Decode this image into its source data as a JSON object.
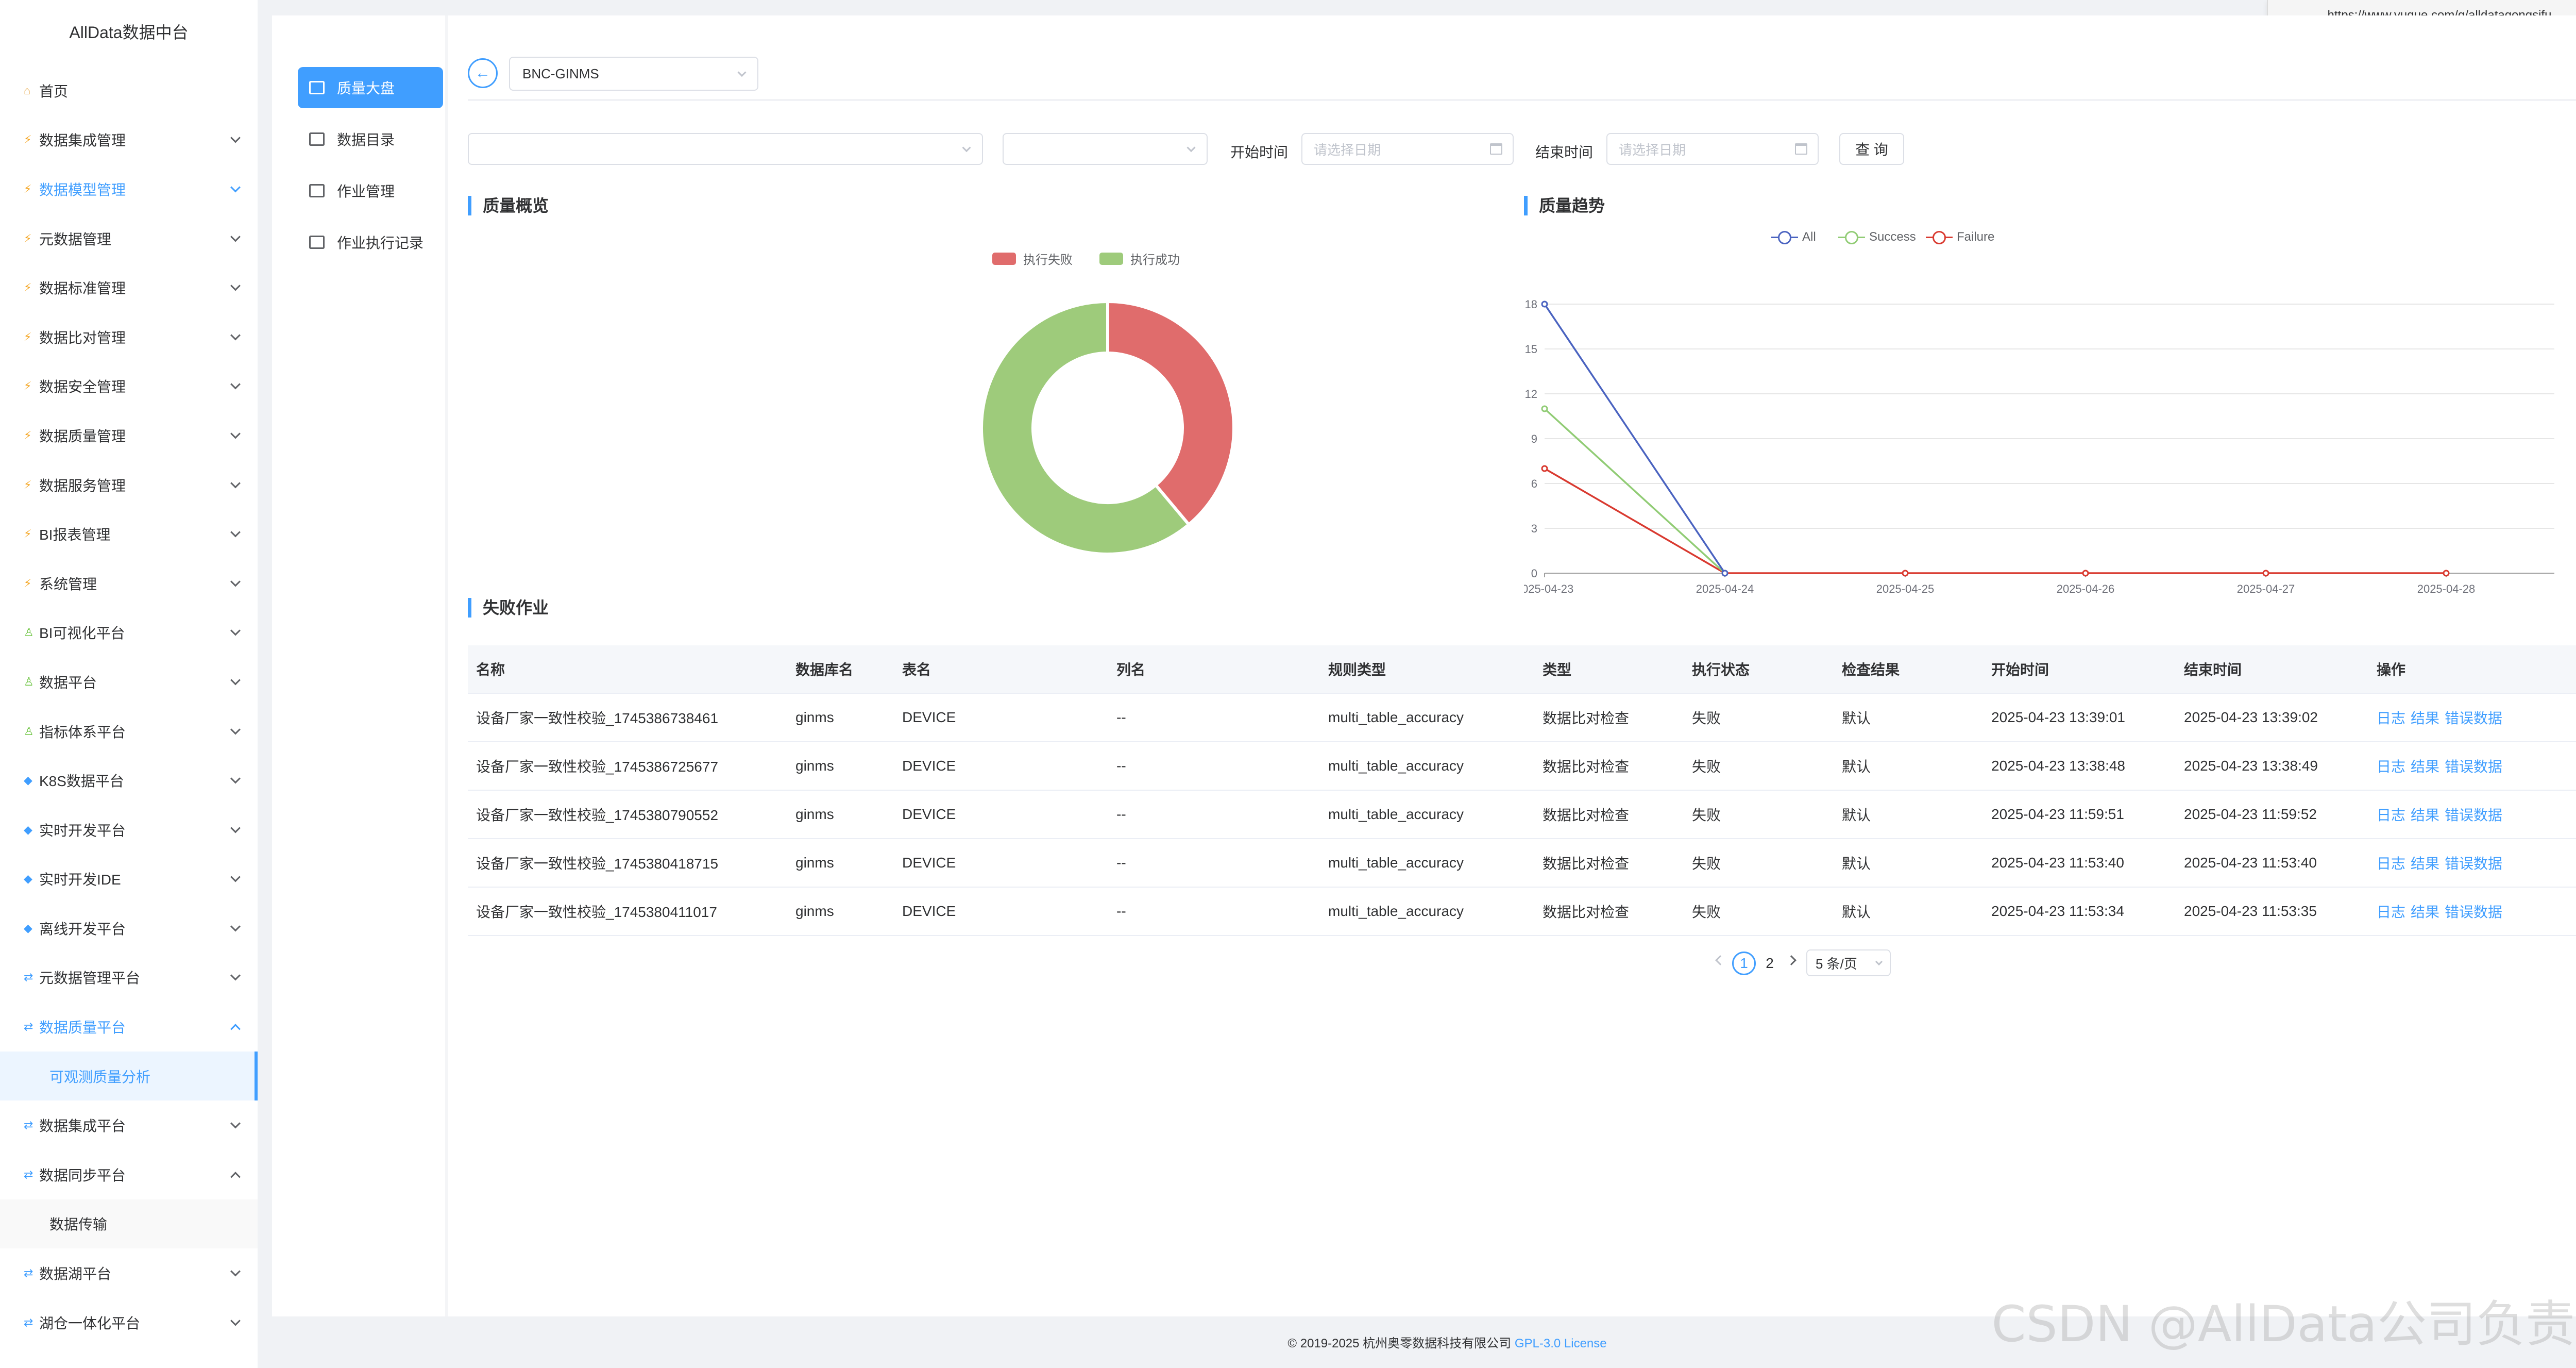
{
  "app": {
    "title": "AllData数据中台"
  },
  "browser": {
    "url": "https://www.yuque.com/g/alldatagongsifu..."
  },
  "sidebar": {
    "items": [
      {
        "label": "首页",
        "icon": "house-icon"
      },
      {
        "label": "数据集成管理",
        "icon": "bolt-icon"
      },
      {
        "label": "数据模型管理",
        "icon": "bolt-icon"
      },
      {
        "label": "元数据管理",
        "icon": "bolt-icon"
      },
      {
        "label": "数据标准管理",
        "icon": "bolt-icon"
      },
      {
        "label": "数据比对管理",
        "icon": "bolt-icon"
      },
      {
        "label": "数据安全管理",
        "icon": "bolt-icon"
      },
      {
        "label": "数据质量管理",
        "icon": "bolt-icon"
      },
      {
        "label": "数据服务管理",
        "icon": "bolt-icon"
      },
      {
        "label": "BI报表管理",
        "icon": "bolt-icon"
      },
      {
        "label": "系统管理",
        "icon": "bolt-icon"
      },
      {
        "label": "BI可视化平台",
        "icon": "person-icon"
      },
      {
        "label": "数据平台",
        "icon": "person-icon"
      },
      {
        "label": "指标体系平台",
        "icon": "person-icon"
      },
      {
        "label": "K8S数据平台",
        "icon": "gem-icon"
      },
      {
        "label": "实时开发平台",
        "icon": "gem-icon"
      },
      {
        "label": "实时开发IDE",
        "icon": "gem-icon"
      },
      {
        "label": "离线开发平台",
        "icon": "gem-icon"
      },
      {
        "label": "元数据管理平台",
        "icon": "swap-icon"
      },
      {
        "label": "数据质量平台",
        "icon": "swap-icon"
      },
      {
        "label": "可观测质量分析",
        "icon": ""
      },
      {
        "label": "数据集成平台",
        "icon": "swap-icon"
      },
      {
        "label": "数据同步平台",
        "icon": "swap-icon"
      },
      {
        "label": "数据传输",
        "icon": ""
      },
      {
        "label": "数据湖平台",
        "icon": "swap-icon"
      },
      {
        "label": "湖仓一体化平台",
        "icon": "swap-icon"
      }
    ]
  },
  "subnav": {
    "items": [
      {
        "label": "质量大盘",
        "icon": "bar-chart-icon"
      },
      {
        "label": "数据目录",
        "icon": "catalog-icon"
      },
      {
        "label": "作业管理",
        "icon": "list-icon"
      },
      {
        "label": "作业执行记录",
        "icon": "record-icon"
      }
    ]
  },
  "header": {
    "datasource_value": "BNC-GINMS"
  },
  "filters": {
    "start_label": "开始时间",
    "end_label": "结束时间",
    "date_placeholder": "请选择日期",
    "query_label": "查 询"
  },
  "overview": {
    "title": "质量概览",
    "chart_data": {
      "type": "pie",
      "donut": true,
      "legend": [
        "执行失败",
        "执行成功"
      ],
      "legend_position": "top",
      "values": [
        7,
        11
      ],
      "colors": [
        "#e06c6c",
        "#9ecb7b"
      ]
    }
  },
  "trend": {
    "title": "质量趋势",
    "chart_data": {
      "type": "line",
      "x": [
        "2025-04-23",
        "2025-04-24",
        "2025-04-25",
        "2025-04-26",
        "2025-04-27",
        "2025-04-28"
      ],
      "series": [
        {
          "name": "All",
          "values": [
            18,
            0,
            null,
            null,
            null,
            null
          ],
          "color": "#4a63c0"
        },
        {
          "name": "Success",
          "values": [
            11,
            0,
            null,
            null,
            null,
            null
          ],
          "color": "#91cc75"
        },
        {
          "name": "Failure",
          "values": [
            7,
            0,
            0,
            0,
            0,
            0
          ],
          "color": "#d93a30"
        }
      ],
      "ylim": [
        0,
        18
      ],
      "yticks": [
        0,
        3,
        6,
        9,
        12,
        15,
        18
      ],
      "grid": true,
      "legend_position": "top"
    }
  },
  "failed_jobs": {
    "title": "失败作业",
    "columns": [
      "名称",
      "数据库名",
      "表名",
      "列名",
      "规则类型",
      "类型",
      "执行状态",
      "检查结果",
      "开始时间",
      "结束时间",
      "操作"
    ],
    "actions": [
      "日志",
      "结果",
      "错误数据"
    ],
    "rows": [
      [
        "设备厂家一致性校验_1745386738461",
        "ginms",
        "DEVICE",
        "--",
        "multi_table_accuracy",
        "数据比对检查",
        "失败",
        "默认",
        "2025-04-23 13:39:01",
        "2025-04-23 13:39:02"
      ],
      [
        "设备厂家一致性校验_1745386725677",
        "ginms",
        "DEVICE",
        "--",
        "multi_table_accuracy",
        "数据比对检查",
        "失败",
        "默认",
        "2025-04-23 13:38:48",
        "2025-04-23 13:38:49"
      ],
      [
        "设备厂家一致性校验_1745380790552",
        "ginms",
        "DEVICE",
        "--",
        "multi_table_accuracy",
        "数据比对检查",
        "失败",
        "默认",
        "2025-04-23 11:59:51",
        "2025-04-23 11:59:52"
      ],
      [
        "设备厂家一致性校验_1745380418715",
        "ginms",
        "DEVICE",
        "--",
        "multi_table_accuracy",
        "数据比对检查",
        "失败",
        "默认",
        "2025-04-23 11:53:40",
        "2025-04-23 11:53:40"
      ],
      [
        "设备厂家一致性校验_1745380411017",
        "ginms",
        "DEVICE",
        "--",
        "multi_table_accuracy",
        "数据比对检查",
        "失败",
        "默认",
        "2025-04-23 11:53:34",
        "2025-04-23 11:53:35"
      ]
    ]
  },
  "pagination": {
    "pages": [
      "1",
      "2"
    ],
    "current": "1",
    "page_size": "5 条/页"
  },
  "footer": {
    "copyright": "© 2019-2025 杭州奥零数据科技有限公司",
    "license": "GPL-3.0 License"
  },
  "watermark": "CSDN @AllData公司负责人"
}
